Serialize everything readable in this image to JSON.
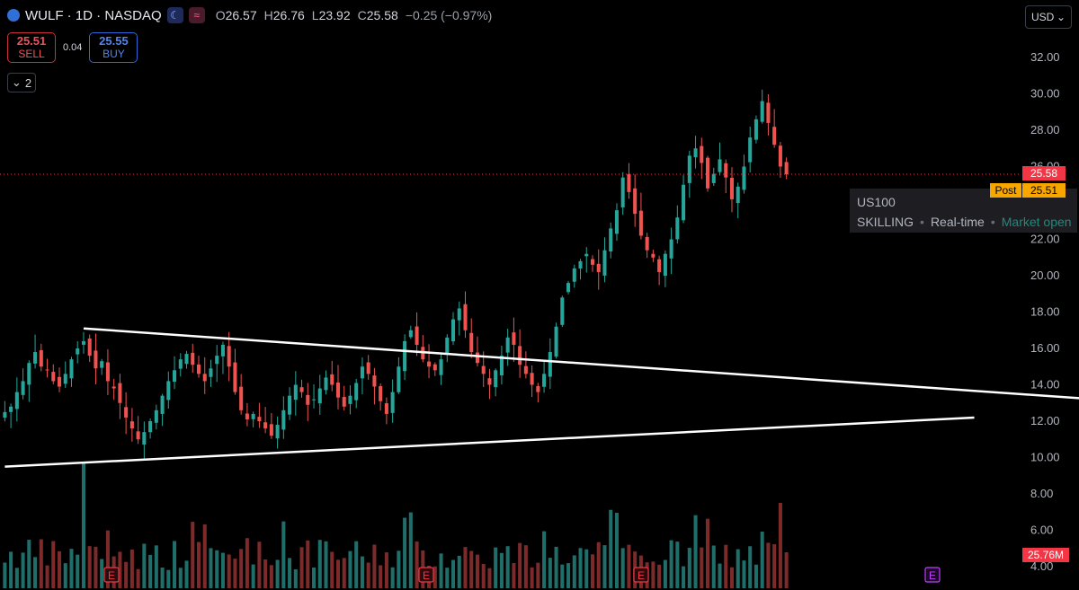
{
  "header": {
    "symbol": "WULF · 1D · NASDAQ",
    "open_label": "O",
    "open": "26.57",
    "high_label": "H",
    "high": "26.76",
    "low_label": "L",
    "low": "23.92",
    "close_label": "C",
    "close": "25.58",
    "change": "−0.25 (−0.97%)",
    "session_icon": "moon-icon",
    "wave_icon": "wave-icon"
  },
  "trade": {
    "sell_price": "25.51",
    "sell_label": "SELL",
    "spread": "0.04",
    "buy_price": "25.55",
    "buy_label": "BUY"
  },
  "indicators": {
    "collapse_count": "2"
  },
  "currency": {
    "label": "USD",
    "icon": "chevron-down-icon"
  },
  "info": {
    "name": "US100",
    "source": "SKILLING",
    "sep": "•",
    "realtime": "Real-time",
    "market": "Market open"
  },
  "price_tags": {
    "last": "25.58",
    "post_label": "Post",
    "post": "25.51",
    "volume": "25.76M"
  },
  "colors": {
    "up": "#26a69a",
    "down": "#ef5350",
    "vol_up": "#1f6e69",
    "vol_down": "#7d2a2a",
    "last_line": "#f23645",
    "earnings": "#f23645",
    "earnings_future": "#c13cff"
  },
  "chart_data": {
    "type": "candlestick",
    "symbol": "WULF",
    "interval": "1D",
    "y_axis_ticks": [
      "32.00",
      "30.00",
      "28.00",
      "26.00",
      "24.00",
      "22.00",
      "20.00",
      "18.00",
      "16.00",
      "14.00",
      "12.00",
      "10.00",
      "8.00",
      "6.00",
      "4.00"
    ],
    "ylim": [
      4,
      32
    ],
    "last_price": 25.58,
    "post_price": 25.51,
    "volume_last": "25.76M",
    "earnings_markers": [
      "E",
      "E",
      "E",
      "E"
    ],
    "trendlines": [
      {
        "from": {
          "bar": 13,
          "price": 17.1
        },
        "to": {
          "bar": 105,
          "price": 12.5
        }
      },
      {
        "from": {
          "bar": 0,
          "price": 9.5
        },
        "to": {
          "bar": 160,
          "price": 12.2
        }
      },
      {
        "from": {
          "bar": 13,
          "price": 17.1
        },
        "to": {
          "bar": 210,
          "price": 12.5
        }
      }
    ],
    "approx_closes": [
      12.5,
      12.8,
      13.6,
      14.2,
      15.2,
      15.8,
      15.0,
      14.8,
      14.2,
      13.9,
      14.6,
      15.4,
      16.0,
      16.4,
      15.6,
      14.9,
      15.3,
      14.2,
      13.8,
      13.0,
      12.2,
      11.6,
      11.0,
      11.4,
      12.0,
      12.6,
      13.4,
      14.2,
      14.8,
      15.4,
      15.7,
      15.1,
      14.6,
      14.2,
      14.9,
      15.6,
      16.2,
      15.0,
      13.6,
      12.6,
      12.1,
      12.4,
      12.0,
      11.6,
      11.2,
      11.8,
      12.6,
      13.4,
      14.0,
      13.6,
      12.9,
      13.2,
      13.8,
      14.4,
      14.0,
      13.3,
      12.8,
      13.4,
      14.1,
      15.0,
      14.6,
      13.9,
      13.1,
      12.4,
      13.6,
      15.0,
      16.4,
      17.0,
      16.2,
      15.4,
      15.0,
      14.8,
      15.4,
      16.6,
      17.6,
      18.2,
      17.0,
      15.8,
      15.2,
      14.6,
      14.0,
      14.8,
      15.6,
      16.6,
      16.2,
      15.1,
      14.6,
      14.0,
      13.6,
      14.6,
      15.8,
      17.2,
      18.8,
      19.6,
      20.4,
      20.8,
      21.2,
      20.6,
      20.2,
      21.4,
      22.6,
      23.6,
      25.4,
      24.6,
      23.4,
      22.2,
      21.4,
      21.0,
      20.2,
      21.2,
      22.0,
      23.2,
      25.0,
      26.6,
      27.0,
      26.2,
      24.8,
      25.6,
      26.4,
      25.4,
      24.2,
      24.9,
      26.0,
      27.6,
      28.6,
      29.6,
      28.4,
      27.2,
      26.0,
      25.58
    ]
  }
}
